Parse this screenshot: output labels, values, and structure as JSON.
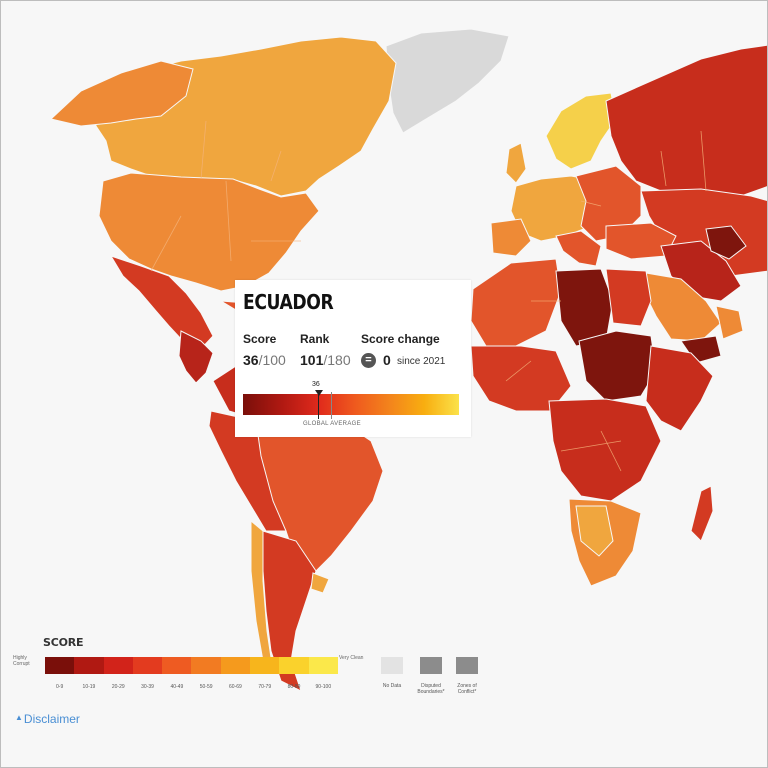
{
  "tooltip": {
    "country": "ECUADOR",
    "score_label": "Score",
    "rank_label": "Rank",
    "change_label": "Score change",
    "score_value": "36",
    "score_max": "/100",
    "rank_value": "101",
    "rank_max": "/180",
    "change_icon": "=",
    "change_value": "0",
    "change_since": "since 2021",
    "marker_value": "36",
    "global_average_label": "GLOBAL AVERAGE"
  },
  "legend": {
    "title": "SCORE",
    "low_label": "Highly Corrupt",
    "high_label": "Very Clean",
    "ranges": [
      "0-9",
      "10-19",
      "20-29",
      "30-39",
      "40-49",
      "50-59",
      "60-69",
      "70-79",
      "80-89",
      "90-100"
    ],
    "colors": [
      "#7a0f0a",
      "#b01912",
      "#d2231a",
      "#e33b1f",
      "#ee5b22",
      "#f27b22",
      "#f59a1d",
      "#f7b51c",
      "#fad22c",
      "#fbe84a"
    ],
    "no_data_label": "No Data",
    "no_data_color": "#e3e3e3",
    "disputed_label": "Disputed Boundaries*",
    "zones_label": "Zones of Conflict*",
    "disputed_color": "#8c8c8c"
  },
  "disclaimer": {
    "icon": "info-icon",
    "label": "Disclaimer"
  },
  "map_colors": {
    "very_dark": "#7e150d",
    "dark": "#b7241a",
    "red": "#d33a22",
    "red_orange": "#e2552b",
    "orange": "#ee8a36",
    "light_orange": "#f0a63e",
    "yellow": "#f5d04a",
    "grey": "#d9d9d9"
  }
}
